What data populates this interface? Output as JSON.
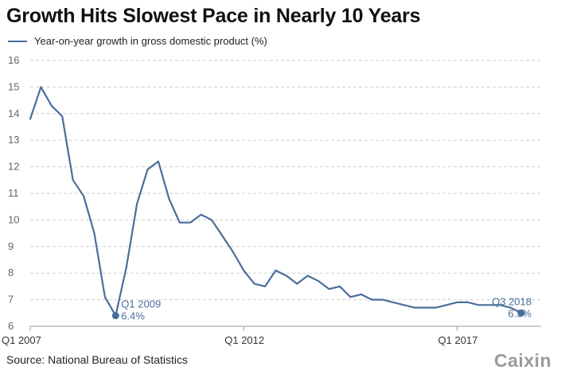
{
  "title": "Growth Hits Slowest Pace in Nearly 10 Years",
  "source": "Source: National Bureau of Statistics",
  "brand": "Caixin",
  "colors": {
    "line": "#4a6e9b",
    "grid": "#cfcfcf",
    "axis": "#999999"
  },
  "chart_data": {
    "type": "line",
    "title": "Growth Hits Slowest Pace in Nearly 10 Years",
    "series": [
      {
        "name": "Year-on-year growth in gross domestic product (%)",
        "values": [
          13.8,
          15.0,
          14.3,
          13.9,
          11.5,
          10.9,
          9.5,
          7.1,
          6.4,
          8.2,
          10.6,
          11.9,
          12.2,
          10.8,
          9.9,
          9.9,
          10.2,
          10.0,
          9.4,
          8.8,
          8.1,
          7.6,
          7.5,
          8.1,
          7.9,
          7.6,
          7.9,
          7.7,
          7.4,
          7.5,
          7.1,
          7.2,
          7.0,
          7.0,
          6.9,
          6.8,
          6.7,
          6.7,
          6.7,
          6.8,
          6.9,
          6.9,
          6.8,
          6.8,
          6.8,
          6.7,
          6.5
        ]
      }
    ],
    "x_start": "Q1 2007",
    "x_ticks": [
      {
        "index": 0,
        "label": "Q1 2007"
      },
      {
        "index": 20,
        "label": "Q1 2012"
      },
      {
        "index": 40,
        "label": "Q1 2017"
      }
    ],
    "ylim": [
      6,
      16
    ],
    "y_ticks": [
      6,
      7,
      8,
      9,
      10,
      11,
      12,
      13,
      14,
      15,
      16
    ],
    "grid": true,
    "legend": "top-left",
    "annotations": [
      {
        "index": 8,
        "label": "Q1 2009",
        "value_text": "6.4%"
      },
      {
        "index": 46,
        "label": "Q3 2018",
        "value_text": "6.5%"
      }
    ]
  }
}
